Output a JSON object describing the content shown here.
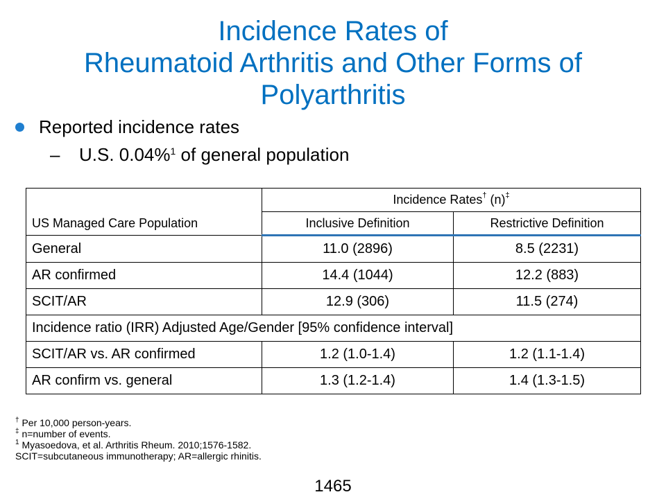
{
  "title": {
    "line1": "Incidence Rates of",
    "line2": "Rheumatoid Arthritis and Other Forms of",
    "line3": "Polyarthritis"
  },
  "bullets": {
    "main": "Reported incidence rates",
    "sub_prefix": "U.S. 0.04%",
    "sub_sup": "1",
    "sub_suffix": " of general population",
    "dash": "–"
  },
  "table": {
    "corner_header": "US Managed Care Population",
    "group_header": "Incidence Rates",
    "group_header_sup1": "†",
    "group_header_mid": " (n)",
    "group_header_sup2": "‡",
    "col_inclusive": "Inclusive Definition",
    "col_restrictive": "Restrictive Definition",
    "rows": [
      {
        "label": "General",
        "inclusive": "11.0 (2896)",
        "restrictive": "8.5 (2231)"
      },
      {
        "label": "AR confirmed",
        "inclusive": "14.4 (1044)",
        "restrictive": "12.2 (883)"
      },
      {
        "label": "SCIT/AR",
        "inclusive": "12.9 (306)",
        "restrictive": "11.5 (274)"
      }
    ],
    "section_label": "Incidence ratio (IRR) Adjusted Age/Gender [95% confidence interval]",
    "ratio_rows": [
      {
        "label": "SCIT/AR vs. AR confirmed",
        "inclusive": "1.2 (1.0-1.4)",
        "restrictive": "1.2 (1.1-1.4)"
      },
      {
        "label": "AR confirm vs. general",
        "inclusive": "1.3 (1.2-1.4)",
        "restrictive": "1.4 (1.3-1.5)"
      }
    ]
  },
  "footnotes": [
    {
      "mark": "†",
      "text": " Per 10,000 person-years."
    },
    {
      "mark": "‡",
      "text": " n=number of events."
    },
    {
      "mark": "1",
      "text": " Myasoedova, et al. Arthritis Rheum. 2010;1576-1582."
    },
    {
      "mark": "",
      "text": "SCIT=subcutaneous immunotherapy; AR=allergic rhinitis."
    }
  ],
  "slide_number": "1465",
  "colors": {
    "title": "#0070c0",
    "bullet": "#1f7fd0",
    "header_rule": "#2e74b5"
  }
}
